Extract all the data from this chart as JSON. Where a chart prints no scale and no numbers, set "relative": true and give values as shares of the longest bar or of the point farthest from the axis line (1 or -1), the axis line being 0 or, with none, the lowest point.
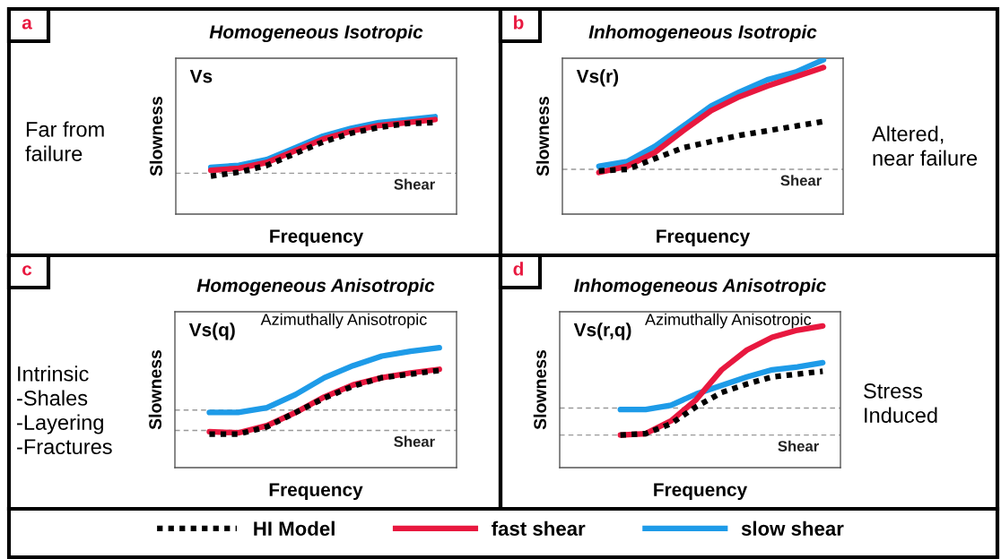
{
  "chart_data": [
    {
      "type": "line",
      "relative": true,
      "title": "Homogeneous Isotropic",
      "xlabel": "Frequency",
      "ylabel": "Slowness",
      "categories": [
        null,
        null,
        null,
        null,
        null,
        null,
        null,
        null,
        null
      ],
      "legend": "bottom",
      "marker": "none",
      "annotations": [
        "a",
        "Vs",
        "Far from\nfailure"
      ],
      "ref_lines": [
        {
          "axis": "y",
          "value": 0.42,
          "label": "Shear",
          "color": "#999999",
          "line_style": "dashed"
        }
      ],
      "series": [
        {
          "name": "slow shear",
          "color": "#1e9be8",
          "line_style": "solid",
          "values": [
            0.48,
            0.5,
            0.56,
            0.68,
            0.8,
            0.88,
            0.94,
            0.97,
            1.0
          ]
        },
        {
          "name": "fast shear",
          "color": "#e8183f",
          "line_style": "solid",
          "values": [
            0.45,
            0.47,
            0.53,
            0.65,
            0.77,
            0.85,
            0.91,
            0.94,
            0.97
          ]
        },
        {
          "name": "HI Model",
          "color": "#000000",
          "line_style": "dotted",
          "values": [
            0.39,
            0.43,
            0.5,
            0.62,
            0.74,
            0.83,
            0.89,
            0.93,
            0.94
          ]
        }
      ]
    },
    {
      "type": "line",
      "relative": true,
      "title": "Inhomogeneous Isotropic",
      "xlabel": "Frequency",
      "ylabel": "Slowness",
      "categories": [
        null,
        null,
        null,
        null,
        null,
        null,
        null,
        null,
        null
      ],
      "marker": "none",
      "annotations": [
        "b",
        "Vs(r)",
        "Altered,\nnear failure"
      ],
      "ref_lines": [
        {
          "axis": "y",
          "value": 0.29,
          "label": "Shear",
          "color": "#999999",
          "line_style": "dashed"
        }
      ],
      "series": [
        {
          "color": "#1e9be8",
          "line_style": "solid",
          "values": [
            0.31,
            0.34,
            0.44,
            0.57,
            0.7,
            0.79,
            0.87,
            0.92,
            1.0
          ]
        },
        {
          "color": "#e8183f",
          "line_style": "solid",
          "values": [
            0.27,
            0.31,
            0.4,
            0.54,
            0.67,
            0.76,
            0.83,
            0.89,
            0.95
          ]
        },
        {
          "color": "#000000",
          "line_style": "dotted",
          "values": [
            0.28,
            0.29,
            0.36,
            0.43,
            0.47,
            0.51,
            0.54,
            0.57,
            0.6
          ]
        }
      ]
    },
    {
      "type": "line",
      "relative": true,
      "title": "Homogeneous Anisotropic",
      "xlabel": "Frequency",
      "ylabel": "Slowness",
      "categories": [
        null,
        null,
        null,
        null,
        null,
        null,
        null,
        null,
        null
      ],
      "marker": "none",
      "annotations": [
        "c",
        "Vs(q)",
        "Intrinsic\n-Shales\n-Layering\n-Fractures",
        "Azimuthally Anisotropic"
      ],
      "ref_lines": [
        {
          "axis": "y",
          "value": 0.48,
          "color": "#999999",
          "line_style": "dashed"
        },
        {
          "axis": "y",
          "value": 0.31,
          "label": "Shear",
          "color": "#999999",
          "line_style": "dashed"
        }
      ],
      "series": [
        {
          "color": "#1e9be8",
          "line_style": "solid",
          "values": [
            0.46,
            0.46,
            0.5,
            0.61,
            0.75,
            0.85,
            0.93,
            0.97,
            1.0
          ]
        },
        {
          "color": "#e8183f",
          "line_style": "solid",
          "values": [
            0.3,
            0.29,
            0.35,
            0.46,
            0.59,
            0.69,
            0.75,
            0.79,
            0.82
          ]
        },
        {
          "color": "#000000",
          "line_style": "dotted",
          "values": [
            0.28,
            0.28,
            0.34,
            0.46,
            0.58,
            0.68,
            0.75,
            0.78,
            0.81
          ]
        }
      ]
    },
    {
      "type": "line",
      "relative": true,
      "title": "Inhomogeneous Anisotropic",
      "xlabel": "Frequency",
      "ylabel": "Slowness",
      "categories": [
        null,
        null,
        null,
        null,
        null,
        null,
        null,
        null,
        null
      ],
      "marker": "none",
      "annotations": [
        "d",
        "Vs(r,q)",
        "Stress\nInduced",
        "Azimuthally Anisotropic"
      ],
      "ref_lines": [
        {
          "axis": "y",
          "value": 0.42,
          "color": "#999999",
          "line_style": "dashed"
        },
        {
          "axis": "y",
          "value": 0.23,
          "label": "Shear",
          "color": "#999999",
          "line_style": "dashed"
        }
      ],
      "series": [
        {
          "color": "#1e9be8",
          "line_style": "solid",
          "values": [
            0.41,
            0.41,
            0.44,
            0.52,
            0.58,
            0.64,
            0.69,
            0.71,
            0.74
          ]
        },
        {
          "color": "#e8183f",
          "line_style": "solid",
          "values": [
            0.23,
            0.24,
            0.33,
            0.48,
            0.69,
            0.83,
            0.92,
            0.97,
            1.0
          ]
        },
        {
          "color": "#000000",
          "line_style": "dotted",
          "values": [
            0.23,
            0.24,
            0.31,
            0.43,
            0.53,
            0.59,
            0.64,
            0.66,
            0.68
          ]
        }
      ]
    }
  ]
}
